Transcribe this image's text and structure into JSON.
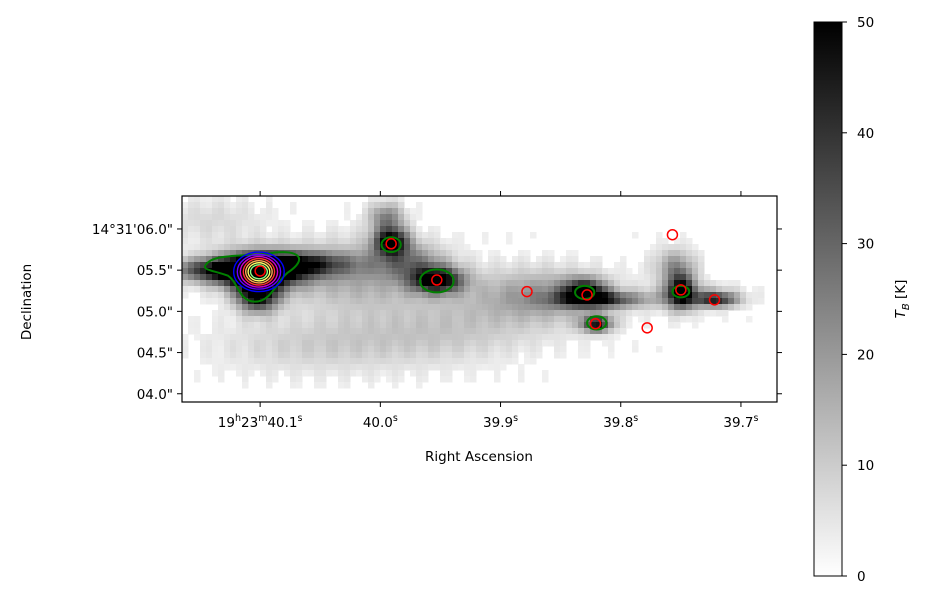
{
  "chart_data": [
    {
      "type": "heatmap",
      "title": "",
      "xlabel": "Right Ascension",
      "ylabel": "Declination",
      "x_ticks": [
        {
          "value": 40.1,
          "parts": [
            "19",
            "h",
            "23",
            "m",
            "40.1",
            "s"
          ]
        },
        {
          "value": 40.0,
          "parts": [
            "40.0",
            "s"
          ]
        },
        {
          "value": 39.9,
          "parts": [
            "39.9",
            "s"
          ]
        },
        {
          "value": 39.8,
          "parts": [
            "39.8",
            "s"
          ]
        },
        {
          "value": 39.7,
          "parts": [
            "39.7",
            "s"
          ]
        }
      ],
      "y_ticks": [
        {
          "value": 6.0,
          "label": "14°31'06.0\""
        },
        {
          "value": 5.5,
          "label": "05.5\""
        },
        {
          "value": 5.0,
          "label": "05.0\""
        },
        {
          "value": 4.5,
          "label": "04.5\""
        },
        {
          "value": 4.0,
          "label": "04.0\""
        }
      ],
      "xlim_ra_seconds": [
        40.165,
        39.67
      ],
      "ylim_dec_arcsec": [
        3.9,
        6.4
      ],
      "colormap": "gray_r",
      "colorbar": {
        "label": "T_B [K]",
        "label_main": "T",
        "label_sub": "B",
        "label_unit": " [K]",
        "range": [
          0,
          50
        ],
        "ticks": [
          0,
          10,
          20,
          30,
          40,
          50
        ]
      },
      "emission_sources": [
        {
          "ra": 40.101,
          "dec": 5.49,
          "peak": 52,
          "sx": 0.025,
          "sy": 0.16
        },
        {
          "ra": 40.102,
          "dec": 5.2,
          "peak": 48,
          "sx": 0.012,
          "sy": 0.14
        },
        {
          "ra": 40.125,
          "dec": 5.5,
          "peak": 40,
          "sx": 0.035,
          "sy": 0.1
        },
        {
          "ra": 40.065,
          "dec": 5.58,
          "peak": 30,
          "sx": 0.03,
          "sy": 0.1
        },
        {
          "ra": 39.991,
          "dec": 5.85,
          "peak": 48,
          "sx": 0.01,
          "sy": 0.12
        },
        {
          "ra": 39.995,
          "dec": 6.15,
          "peak": 22,
          "sx": 0.01,
          "sy": 0.12
        },
        {
          "ra": 39.953,
          "dec": 5.38,
          "peak": 48,
          "sx": 0.015,
          "sy": 0.11
        },
        {
          "ra": 39.975,
          "dec": 5.6,
          "peak": 18,
          "sx": 0.02,
          "sy": 0.15
        },
        {
          "ra": 40.02,
          "dec": 5.45,
          "peak": 15,
          "sx": 0.04,
          "sy": 0.3
        },
        {
          "ra": 39.83,
          "dec": 5.25,
          "peak": 42,
          "sx": 0.012,
          "sy": 0.1
        },
        {
          "ra": 39.818,
          "dec": 5.14,
          "peak": 35,
          "sx": 0.025,
          "sy": 0.07
        },
        {
          "ra": 39.82,
          "dec": 4.85,
          "peak": 42,
          "sx": 0.009,
          "sy": 0.07
        },
        {
          "ra": 39.86,
          "dec": 5.2,
          "peak": 14,
          "sx": 0.035,
          "sy": 0.2
        },
        {
          "ra": 39.75,
          "dec": 5.25,
          "peak": 45,
          "sx": 0.008,
          "sy": 0.15
        },
        {
          "ra": 39.755,
          "dec": 5.55,
          "peak": 18,
          "sx": 0.012,
          "sy": 0.15
        },
        {
          "ra": 39.72,
          "dec": 5.14,
          "peak": 32,
          "sx": 0.012,
          "sy": 0.06
        },
        {
          "ra": 39.74,
          "dec": 5.18,
          "peak": 16,
          "sx": 0.025,
          "sy": 0.1
        },
        {
          "ra": 40.05,
          "dec": 4.6,
          "peak": 8,
          "sx": 0.06,
          "sy": 0.25
        },
        {
          "ra": 39.9,
          "dec": 5.1,
          "peak": 8,
          "sx": 0.06,
          "sy": 0.3
        },
        {
          "ra": 39.95,
          "dec": 4.7,
          "peak": 6,
          "sx": 0.05,
          "sy": 0.25
        },
        {
          "ra": 40.14,
          "dec": 6.1,
          "peak": 6,
          "sx": 0.03,
          "sy": 0.2
        }
      ],
      "green_contours": [
        {
          "ra": 40.102,
          "dec": 5.45,
          "rx_arcsec": 0.045,
          "ry_arcsec": 0.35,
          "kind": "blob"
        },
        {
          "ra": 39.991,
          "dec": 5.81,
          "rx_arcsec": 0.008,
          "ry_arcsec": 0.09
        },
        {
          "ra": 39.953,
          "dec": 5.37,
          "rx_arcsec": 0.014,
          "ry_arcsec": 0.14
        },
        {
          "ra": 39.83,
          "dec": 5.23,
          "rx_arcsec": 0.008,
          "ry_arcsec": 0.08
        },
        {
          "ra": 39.82,
          "dec": 4.86,
          "rx_arcsec": 0.008,
          "ry_arcsec": 0.08
        },
        {
          "ra": 39.75,
          "dec": 5.24,
          "rx_arcsec": 0.007,
          "ry_arcsec": 0.07
        }
      ],
      "inner_contours": {
        "center_ra": 40.101,
        "center_dec": 5.48,
        "levels": [
          {
            "color": "#0000ff",
            "rx_arcsec": 0.021,
            "ry_arcsec": 0.24
          },
          {
            "color": "#6600ff",
            "rx_arcsec": 0.018,
            "ry_arcsec": 0.21
          },
          {
            "color": "#cc00cc",
            "rx_arcsec": 0.0155,
            "ry_arcsec": 0.185
          },
          {
            "color": "#ff3333",
            "rx_arcsec": 0.013,
            "ry_arcsec": 0.16
          },
          {
            "color": "#ffaa55",
            "rx_arcsec": 0.011,
            "ry_arcsec": 0.135
          },
          {
            "color": "#ffff66",
            "rx_arcsec": 0.009,
            "ry_arcsec": 0.11
          },
          {
            "color": "#88ff88",
            "rx_arcsec": 0.007,
            "ry_arcsec": 0.085
          }
        ]
      },
      "markers": [
        {
          "ra": 40.1,
          "dec": 5.49,
          "color": "red"
        },
        {
          "ra": 39.991,
          "dec": 5.82,
          "color": "red"
        },
        {
          "ra": 39.953,
          "dec": 5.38,
          "color": "red"
        },
        {
          "ra": 39.878,
          "dec": 5.24,
          "color": "red"
        },
        {
          "ra": 39.828,
          "dec": 5.2,
          "color": "red"
        },
        {
          "ra": 39.821,
          "dec": 4.85,
          "color": "red"
        },
        {
          "ra": 39.778,
          "dec": 4.8,
          "color": "red"
        },
        {
          "ra": 39.757,
          "dec": 5.93,
          "color": "red"
        },
        {
          "ra": 39.75,
          "dec": 5.26,
          "color": "red"
        },
        {
          "ra": 39.722,
          "dec": 5.14,
          "color": "red"
        }
      ]
    }
  ]
}
